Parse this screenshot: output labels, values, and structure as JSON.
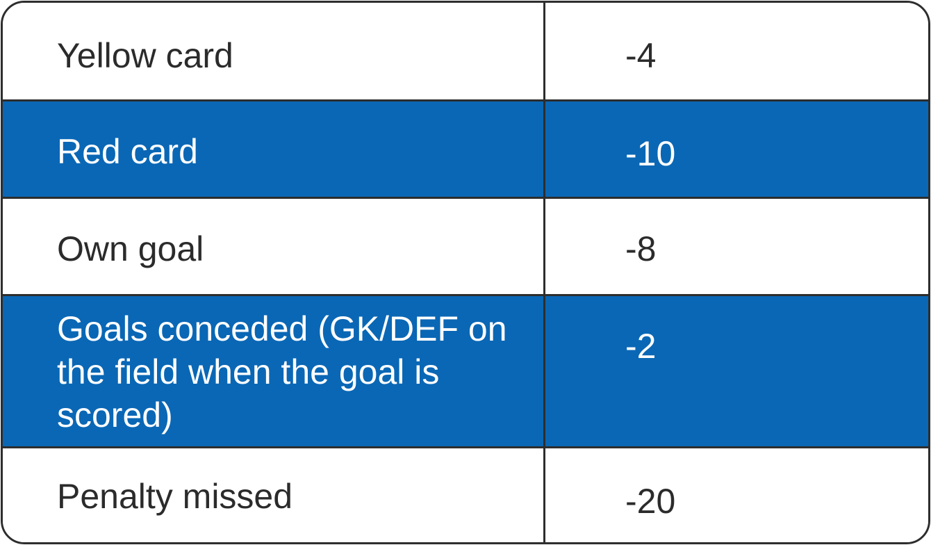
{
  "table": {
    "rows": [
      {
        "label": "Yellow card",
        "value": "-4"
      },
      {
        "label": "Red card",
        "value": "-10"
      },
      {
        "label": "Own goal",
        "value": "-8"
      },
      {
        "label": "Goals conceded (GK/DEF on the field when the goal is scored)",
        "value": "-2"
      },
      {
        "label": "Penalty missed",
        "value": "-20"
      }
    ]
  },
  "colors": {
    "row_highlight": "#0a67b5",
    "row_plain": "#ffffff",
    "border": "#2d2d2d",
    "text_dark": "#2b2b2b",
    "text_light": "#ffffff"
  }
}
